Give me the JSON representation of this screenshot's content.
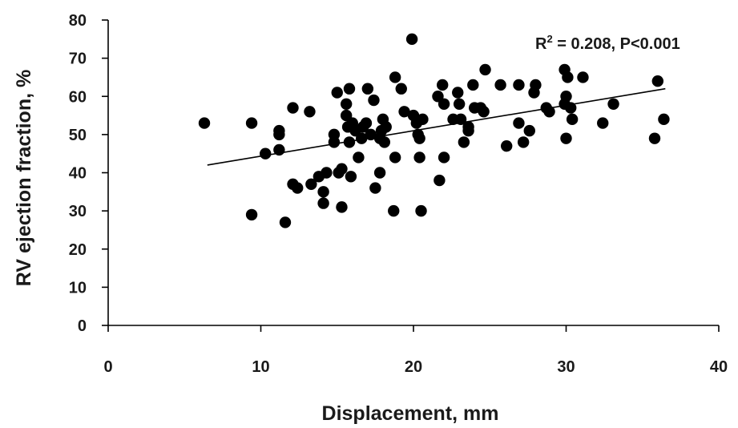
{
  "chart_data": {
    "type": "scatter",
    "title": "",
    "xlabel": "Displacement, mm",
    "ylabel": "RV ejection fraction, %",
    "xlim": [
      0,
      40
    ],
    "ylim": [
      0,
      80
    ],
    "xticks": [
      0,
      10,
      20,
      30,
      40
    ],
    "yticks": [
      0,
      10,
      20,
      30,
      40,
      50,
      60,
      70,
      80
    ],
    "grid": false,
    "legend": "none",
    "annotation": {
      "base": "R",
      "sup": "2",
      "text": " = 0.208, P<0.001"
    },
    "trendline": {
      "x": [
        6.5,
        36.5
      ],
      "y": [
        42,
        62
      ]
    },
    "colors": {
      "points": "#000000",
      "axis": "#000000",
      "text": "#1a1a1a"
    },
    "series": [
      {
        "points": [
          [
            6.3,
            53
          ],
          [
            9.4,
            53
          ],
          [
            9.4,
            29
          ],
          [
            10.3,
            45
          ],
          [
            11.2,
            51
          ],
          [
            11.2,
            50
          ],
          [
            11.2,
            46
          ],
          [
            11.6,
            27
          ],
          [
            12.1,
            57
          ],
          [
            12.1,
            37
          ],
          [
            12.4,
            36
          ],
          [
            13.2,
            56
          ],
          [
            13.3,
            37
          ],
          [
            13.8,
            39
          ],
          [
            14.1,
            35
          ],
          [
            14.1,
            32
          ],
          [
            14.3,
            40
          ],
          [
            14.8,
            50
          ],
          [
            14.8,
            48
          ],
          [
            15.0,
            61
          ],
          [
            15.1,
            40
          ],
          [
            15.3,
            41
          ],
          [
            15.3,
            31
          ],
          [
            15.6,
            58
          ],
          [
            15.6,
            55
          ],
          [
            15.7,
            52
          ],
          [
            15.8,
            62
          ],
          [
            15.8,
            48
          ],
          [
            15.9,
            39
          ],
          [
            16.0,
            53
          ],
          [
            16.2,
            51
          ],
          [
            16.4,
            44
          ],
          [
            16.6,
            49
          ],
          [
            16.7,
            52
          ],
          [
            16.9,
            53
          ],
          [
            17.0,
            62
          ],
          [
            17.2,
            50
          ],
          [
            17.4,
            59
          ],
          [
            17.5,
            36
          ],
          [
            17.8,
            40
          ],
          [
            17.8,
            49
          ],
          [
            17.9,
            51
          ],
          [
            18.0,
            54
          ],
          [
            18.1,
            48
          ],
          [
            18.2,
            52
          ],
          [
            18.7,
            30
          ],
          [
            18.8,
            44
          ],
          [
            18.8,
            65
          ],
          [
            19.2,
            62
          ],
          [
            19.4,
            56
          ],
          [
            19.9,
            75
          ],
          [
            20.0,
            55
          ],
          [
            20.2,
            53
          ],
          [
            20.3,
            50
          ],
          [
            20.4,
            49
          ],
          [
            20.4,
            44
          ],
          [
            20.5,
            30
          ],
          [
            20.6,
            54
          ],
          [
            21.6,
            60
          ],
          [
            21.7,
            38
          ],
          [
            21.9,
            63
          ],
          [
            22.0,
            58
          ],
          [
            22.0,
            44
          ],
          [
            22.6,
            54
          ],
          [
            22.9,
            61
          ],
          [
            23.0,
            58
          ],
          [
            23.1,
            54
          ],
          [
            23.3,
            48
          ],
          [
            23.6,
            51
          ],
          [
            23.6,
            52
          ],
          [
            23.9,
            63
          ],
          [
            24.0,
            57
          ],
          [
            24.4,
            57
          ],
          [
            24.6,
            56
          ],
          [
            24.7,
            67
          ],
          [
            25.7,
            63
          ],
          [
            26.1,
            47
          ],
          [
            26.9,
            63
          ],
          [
            26.9,
            53
          ],
          [
            27.2,
            48
          ],
          [
            27.6,
            51
          ],
          [
            27.9,
            61
          ],
          [
            28.0,
            63
          ],
          [
            28.7,
            57
          ],
          [
            28.9,
            56
          ],
          [
            29.9,
            67
          ],
          [
            29.9,
            58
          ],
          [
            30.0,
            60
          ],
          [
            30.0,
            49
          ],
          [
            30.1,
            65
          ],
          [
            30.3,
            57
          ],
          [
            30.4,
            54
          ],
          [
            31.1,
            65
          ],
          [
            32.4,
            53
          ],
          [
            33.1,
            58
          ],
          [
            35.8,
            49
          ],
          [
            36.0,
            64
          ],
          [
            36.4,
            54
          ]
        ]
      }
    ]
  }
}
